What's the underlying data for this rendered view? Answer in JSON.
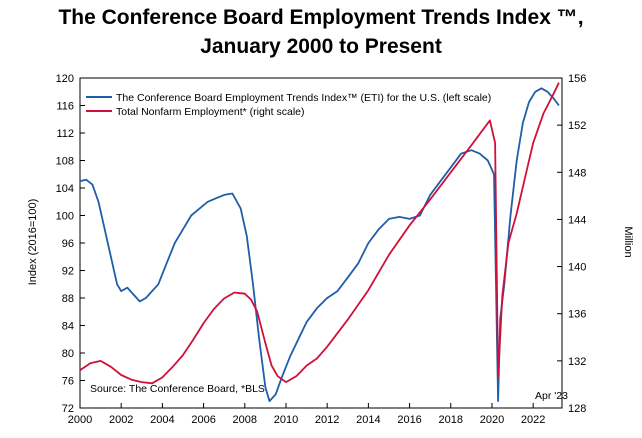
{
  "chart_data": {
    "type": "line",
    "title": "The Conference Board Employment Trends Index ™,",
    "subtitle": "January 2000 to Present",
    "ylabel_left": "Index (2016=100)",
    "ylabel_right": "Million",
    "x_ticks": [
      "2000",
      "2002",
      "2004",
      "2006",
      "2008",
      "2010",
      "2012",
      "2014",
      "2016",
      "2018",
      "2020",
      "2022"
    ],
    "xlim": [
      2000,
      2023.4
    ],
    "ylim_left": [
      72,
      120
    ],
    "yticks_left": [
      72,
      76,
      80,
      84,
      88,
      92,
      96,
      100,
      104,
      108,
      112,
      116,
      120
    ],
    "ylim_right": [
      128,
      156
    ],
    "yticks_right": [
      128,
      132,
      136,
      140,
      144,
      148,
      152,
      156
    ],
    "grid": false,
    "legend_position": "top-left",
    "series": [
      {
        "name": "The Conference Board Employment Trends Index™ (ETI) for the U.S. (left scale)",
        "axis": "left",
        "color": "#1f5ea8",
        "x": [
          2000,
          2000.3,
          2000.6,
          2000.9,
          2001.2,
          2001.5,
          2001.8,
          2002.0,
          2002.3,
          2002.6,
          2002.9,
          2003.2,
          2003.5,
          2003.8,
          2004.2,
          2004.6,
          2005.0,
          2005.4,
          2005.8,
          2006.2,
          2006.6,
          2007.0,
          2007.4,
          2007.8,
          2008.1,
          2008.4,
          2008.7,
          2009.0,
          2009.2,
          2009.5,
          2009.8,
          2010.2,
          2010.6,
          2011.0,
          2011.5,
          2012.0,
          2012.5,
          2013.0,
          2013.5,
          2014.0,
          2014.5,
          2015.0,
          2015.5,
          2016.0,
          2016.5,
          2017.0,
          2017.5,
          2018.0,
          2018.5,
          2019.0,
          2019.4,
          2019.8,
          2020.1,
          2020.3,
          2020.4,
          2020.6,
          2020.9,
          2021.2,
          2021.5,
          2021.8,
          2022.1,
          2022.4,
          2022.7,
          2023.0,
          2023.25
        ],
        "values": [
          105,
          105.2,
          104.5,
          102,
          98,
          94,
          90,
          89,
          89.5,
          88.5,
          87.5,
          88,
          89,
          90,
          93,
          96,
          98,
          100,
          101,
          102,
          102.5,
          103,
          103.2,
          101,
          97,
          90,
          82,
          75,
          73,
          74,
          76.5,
          79.5,
          82,
          84.5,
          86.5,
          88,
          89,
          91,
          93,
          96,
          98,
          99.5,
          99.8,
          99.5,
          100,
          103,
          105,
          107,
          109,
          109.5,
          109,
          108,
          106,
          73,
          85,
          90,
          100,
          108,
          113.5,
          116.5,
          118,
          118.5,
          118,
          117,
          116
        ]
      },
      {
        "name": "Total Nonfarm Employment* (right scale)",
        "axis": "right",
        "color": "#d0103a",
        "x": [
          2000,
          2000.5,
          2001.0,
          2001.5,
          2002.0,
          2002.5,
          2003.0,
          2003.5,
          2004.0,
          2004.5,
          2005.0,
          2005.5,
          2006.0,
          2006.5,
          2007.0,
          2007.5,
          2008.0,
          2008.3,
          2008.6,
          2009.0,
          2009.3,
          2009.6,
          2010.0,
          2010.5,
          2011.0,
          2011.5,
          2012.0,
          2013.0,
          2014.0,
          2015.0,
          2016.0,
          2017.0,
          2018.0,
          2019.0,
          2019.9,
          2020.15,
          2020.3,
          2020.5,
          2020.8,
          2021.2,
          2021.6,
          2022.0,
          2022.5,
          2023.0,
          2023.25
        ],
        "values": [
          131.2,
          131.8,
          132.0,
          131.5,
          130.8,
          130.4,
          130.2,
          130.1,
          130.6,
          131.5,
          132.5,
          133.8,
          135.2,
          136.4,
          137.3,
          137.8,
          137.7,
          137.2,
          136.2,
          133.5,
          131.6,
          130.7,
          130.2,
          130.7,
          131.6,
          132.2,
          133.2,
          135.5,
          138.0,
          141.0,
          143.5,
          145.7,
          148.0,
          150.3,
          152.4,
          150.5,
          130.6,
          137.5,
          142.0,
          144.5,
          147.5,
          150.5,
          153.0,
          154.7,
          155.6
        ]
      }
    ],
    "annotations": [
      "Source: The Conference Board, *BLS",
      "Apr '23"
    ]
  }
}
